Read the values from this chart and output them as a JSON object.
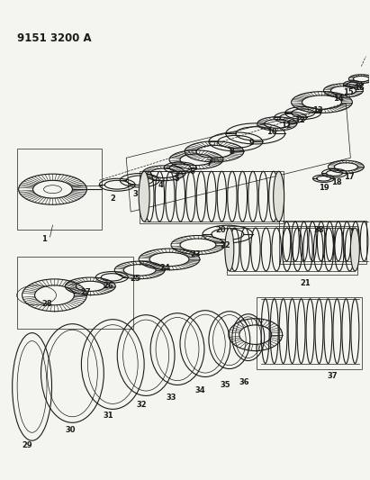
{
  "title": "9151 3200 A",
  "bg_color": "#f5f5f0",
  "line_color": "#1a1a1a",
  "fig_width": 4.11,
  "fig_height": 5.33,
  "dpi": 100
}
